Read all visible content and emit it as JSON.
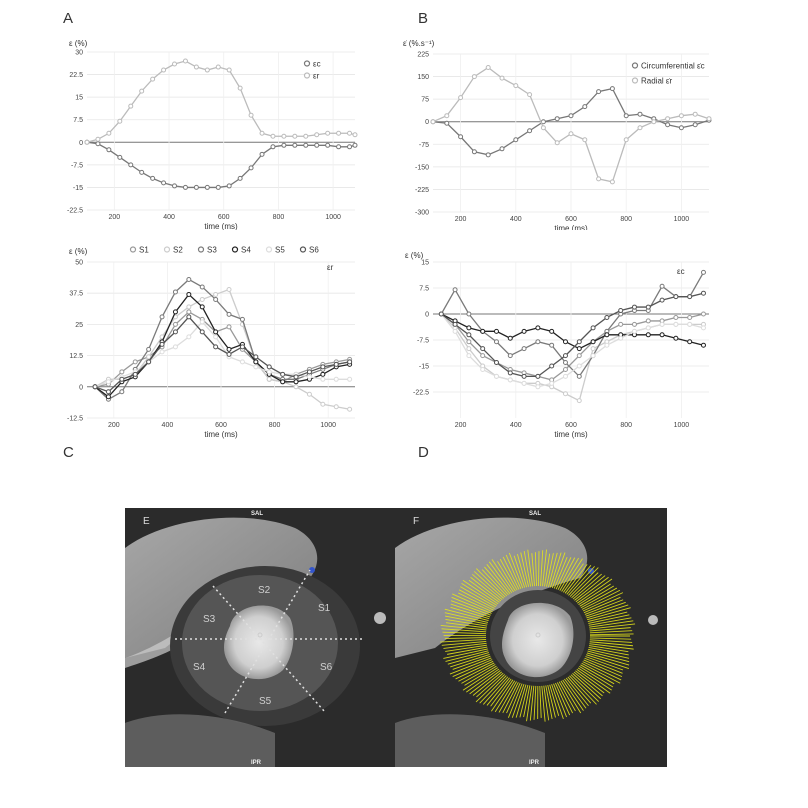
{
  "panel_labels": {
    "A": "A",
    "B": "B",
    "C": "C",
    "D": "D",
    "E": "E",
    "F": "F"
  },
  "chart_data": [
    {
      "id": "A",
      "type": "line",
      "ylabel": "ε (%)",
      "xlabel": "time (ms)",
      "xlim": [
        100,
        1080
      ],
      "ylim": [
        -22.5,
        30
      ],
      "yticks": [
        30,
        22.5,
        15,
        7.5,
        0,
        -7.5,
        -15,
        -22.5
      ],
      "xticks": [
        200,
        400,
        600,
        800,
        1000
      ],
      "legend_position": "top-right",
      "series": [
        {
          "name": "εc",
          "color": "#777777",
          "x": [
            100,
            140,
            180,
            220,
            260,
            300,
            340,
            380,
            420,
            460,
            500,
            540,
            580,
            620,
            660,
            700,
            740,
            780,
            820,
            860,
            900,
            940,
            980,
            1020,
            1060,
            1080
          ],
          "y": [
            0,
            -0.5,
            -2.5,
            -5,
            -7.5,
            -10,
            -12,
            -13.5,
            -14.5,
            -15,
            -15,
            -15,
            -15,
            -14.5,
            -12,
            -8.5,
            -4,
            -1.5,
            -1,
            -1,
            -1,
            -1,
            -1,
            -1.5,
            -1.5,
            -1
          ]
        },
        {
          "name": "εr",
          "color": "#bbbbbb",
          "x": [
            100,
            140,
            180,
            220,
            260,
            300,
            340,
            380,
            420,
            460,
            500,
            540,
            580,
            620,
            660,
            700,
            740,
            780,
            820,
            860,
            900,
            940,
            980,
            1020,
            1060,
            1080
          ],
          "y": [
            0,
            1,
            3,
            7,
            12,
            17,
            21,
            24,
            26,
            27,
            25,
            24,
            25,
            24,
            18,
            9,
            3,
            2,
            2,
            2,
            2,
            2.5,
            3,
            3,
            3,
            2.5
          ]
        }
      ]
    },
    {
      "id": "B",
      "type": "line",
      "ylabel": "ε̇ (%.s⁻¹)",
      "xlabel": "time (ms)",
      "xlim": [
        100,
        1100
      ],
      "ylim": [
        -300,
        225
      ],
      "yticks": [
        225,
        150,
        75,
        0,
        -75,
        -150,
        -225,
        -300
      ],
      "xticks": [
        200,
        400,
        600,
        800,
        1000
      ],
      "legend_position": "top-right",
      "series": [
        {
          "name": "Circumferential ε̇c",
          "color": "#777777",
          "x": [
            100,
            150,
            200,
            250,
            300,
            350,
            400,
            450,
            500,
            550,
            600,
            650,
            700,
            750,
            800,
            850,
            900,
            950,
            1000,
            1050,
            1100
          ],
          "y": [
            0,
            -5,
            -50,
            -100,
            -110,
            -90,
            -60,
            -30,
            0,
            10,
            20,
            50,
            100,
            110,
            20,
            25,
            10,
            -10,
            -20,
            -10,
            5
          ]
        },
        {
          "name": "Radial ε̇r",
          "color": "#bbbbbb",
          "x": [
            100,
            150,
            200,
            250,
            300,
            350,
            400,
            450,
            500,
            550,
            600,
            650,
            700,
            750,
            800,
            850,
            900,
            950,
            1000,
            1050,
            1100
          ],
          "y": [
            0,
            20,
            80,
            150,
            180,
            145,
            120,
            90,
            -20,
            -70,
            -40,
            -60,
            -190,
            -200,
            -60,
            -20,
            0,
            10,
            20,
            25,
            10
          ]
        }
      ]
    },
    {
      "id": "C",
      "type": "line",
      "ylabel": "ε (%)",
      "xlabel": "time (ms)",
      "annotation": "εr",
      "xlim": [
        100,
        1100
      ],
      "ylim": [
        -12.5,
        50
      ],
      "yticks": [
        50,
        37.5,
        25,
        12.5,
        0,
        -12.5
      ],
      "xticks": [
        200,
        400,
        600,
        800,
        1000
      ],
      "legend_position": "top",
      "series": [
        {
          "name": "S1",
          "color": "#999999",
          "x": [
            130,
            180,
            230,
            280,
            330,
            380,
            430,
            480,
            530,
            580,
            630,
            680,
            730,
            780,
            830,
            880,
            930,
            980,
            1030,
            1080
          ],
          "y": [
            0,
            1,
            6,
            10,
            12,
            16,
            25,
            30,
            27,
            22,
            24,
            15,
            10,
            3,
            2,
            5,
            7,
            9,
            10,
            11
          ]
        },
        {
          "name": "S2",
          "color": "#cccccc",
          "x": [
            130,
            180,
            230,
            280,
            330,
            380,
            430,
            480,
            530,
            580,
            630,
            680,
            730,
            780,
            830,
            880,
            930,
            980,
            1030,
            1080
          ],
          "y": [
            0,
            3,
            3,
            5,
            12,
            20,
            28,
            32,
            35,
            37,
            39,
            25,
            10,
            3,
            2,
            0,
            -3,
            -7,
            -8,
            -9
          ]
        },
        {
          "name": "S3",
          "color": "#7a7a7a",
          "x": [
            130,
            180,
            230,
            280,
            330,
            380,
            430,
            480,
            530,
            580,
            630,
            680,
            730,
            780,
            830,
            880,
            930,
            980,
            1030,
            1080
          ],
          "y": [
            0,
            -5,
            -2,
            7,
            15,
            28,
            38,
            43,
            40,
            35,
            29,
            27,
            10,
            5,
            3,
            3,
            5,
            7,
            9,
            10
          ]
        },
        {
          "name": "S4",
          "color": "#222222",
          "x": [
            130,
            180,
            230,
            280,
            330,
            380,
            430,
            480,
            530,
            580,
            630,
            680,
            730,
            780,
            830,
            880,
            930,
            980,
            1030,
            1080
          ],
          "y": [
            0,
            -4,
            2,
            4,
            10,
            18,
            30,
            37,
            32,
            22,
            15,
            17,
            10,
            5,
            2,
            2,
            3,
            5,
            8,
            9
          ]
        },
        {
          "name": "S5",
          "color": "#dddddd",
          "x": [
            130,
            180,
            230,
            280,
            330,
            380,
            430,
            480,
            530,
            580,
            630,
            680,
            730,
            780,
            830,
            880,
            930,
            980,
            1030,
            1080
          ],
          "y": [
            0,
            2,
            4,
            6,
            10,
            14,
            16,
            20,
            26,
            20,
            12,
            10,
            8,
            6,
            5,
            5,
            4,
            3,
            3,
            3
          ]
        },
        {
          "name": "S6",
          "color": "#555555",
          "x": [
            130,
            180,
            230,
            280,
            330,
            380,
            430,
            480,
            530,
            580,
            630,
            680,
            730,
            780,
            830,
            880,
            930,
            980,
            1030,
            1080
          ],
          "y": [
            0,
            -2,
            3,
            5,
            10,
            17,
            22,
            28,
            22,
            16,
            13,
            16,
            12,
            8,
            5,
            4,
            6,
            8,
            9,
            10
          ]
        }
      ]
    },
    {
      "id": "D",
      "type": "line",
      "ylabel": "ε (%)",
      "xlabel": "time (ms)",
      "annotation": "εc",
      "xlim": [
        100,
        1100
      ],
      "ylim": [
        -30,
        15
      ],
      "yticks": [
        15,
        7.5,
        0,
        -7.5,
        -15,
        -22.5
      ],
      "xticks": [
        200,
        400,
        600,
        800,
        1000
      ],
      "series": [
        {
          "name": "S1",
          "color": "#999999",
          "x": [
            130,
            180,
            230,
            280,
            330,
            380,
            430,
            480,
            530,
            580,
            630,
            680,
            730,
            780,
            830,
            880,
            930,
            980,
            1030,
            1080
          ],
          "y": [
            0,
            -3,
            -8,
            -12,
            -14,
            -16,
            -17,
            -18,
            -19,
            -16,
            -12,
            -8,
            -5,
            -3,
            -3,
            -2,
            -2,
            -1,
            -1,
            0
          ]
        },
        {
          "name": "S2",
          "color": "#cccccc",
          "x": [
            130,
            180,
            230,
            280,
            330,
            380,
            430,
            480,
            530,
            580,
            630,
            680,
            730,
            780,
            830,
            880,
            930,
            980,
            1030,
            1080
          ],
          "y": [
            0,
            -4,
            -10,
            -15,
            -18,
            -19,
            -20,
            -20,
            -21,
            -23,
            -25,
            -10,
            -8,
            -6,
            -5,
            -4,
            -3,
            -3,
            -3,
            -3
          ]
        },
        {
          "name": "S3",
          "color": "#7a7a7a",
          "x": [
            130,
            180,
            230,
            280,
            330,
            380,
            430,
            480,
            530,
            580,
            630,
            680,
            730,
            780,
            830,
            880,
            930,
            980,
            1030,
            1080
          ],
          "y": [
            0,
            7,
            0,
            -5,
            -8,
            -12,
            -10,
            -8,
            -9,
            -14,
            -18,
            -12,
            -5,
            0,
            1,
            1,
            8,
            5,
            5,
            12
          ]
        },
        {
          "name": "S4",
          "color": "#222222",
          "x": [
            130,
            180,
            230,
            280,
            330,
            380,
            430,
            480,
            530,
            580,
            630,
            680,
            730,
            780,
            830,
            880,
            930,
            980,
            1030,
            1080
          ],
          "y": [
            0,
            -2,
            -4,
            -5,
            -5,
            -7,
            -5,
            -4,
            -5,
            -8,
            -10,
            -8,
            -6,
            -6,
            -6,
            -6,
            -6,
            -7,
            -8,
            -9
          ]
        },
        {
          "name": "S5",
          "color": "#dddddd",
          "x": [
            130,
            180,
            230,
            280,
            330,
            380,
            430,
            480,
            530,
            580,
            630,
            680,
            730,
            780,
            830,
            880,
            930,
            980,
            1030,
            1080
          ],
          "y": [
            0,
            -5,
            -12,
            -16,
            -18,
            -19,
            -20,
            -21,
            -20,
            -18,
            -15,
            -12,
            -9,
            -7,
            -5,
            -4,
            -3,
            -3,
            -3,
            -4
          ]
        },
        {
          "name": "S6",
          "color": "#555555",
          "x": [
            130,
            180,
            230,
            280,
            330,
            380,
            430,
            480,
            530,
            580,
            630,
            680,
            730,
            780,
            830,
            880,
            930,
            980,
            1030,
            1080
          ],
          "y": [
            0,
            -3,
            -6,
            -10,
            -14,
            -17,
            -18,
            -18,
            -15,
            -12,
            -8,
            -4,
            -1,
            1,
            2,
            2,
            4,
            5,
            5,
            6
          ]
        }
      ]
    }
  ],
  "mri": {
    "e": {
      "top_label": "SAL",
      "bottom_label": "IPR",
      "segments": [
        "S1",
        "S2",
        "S3",
        "S4",
        "S5",
        "S6"
      ]
    },
    "f": {
      "top_label": "SAL",
      "bottom_label": "IPR"
    },
    "colors": {
      "overlay": "#e6e61a",
      "dots": "#dddddd"
    }
  }
}
